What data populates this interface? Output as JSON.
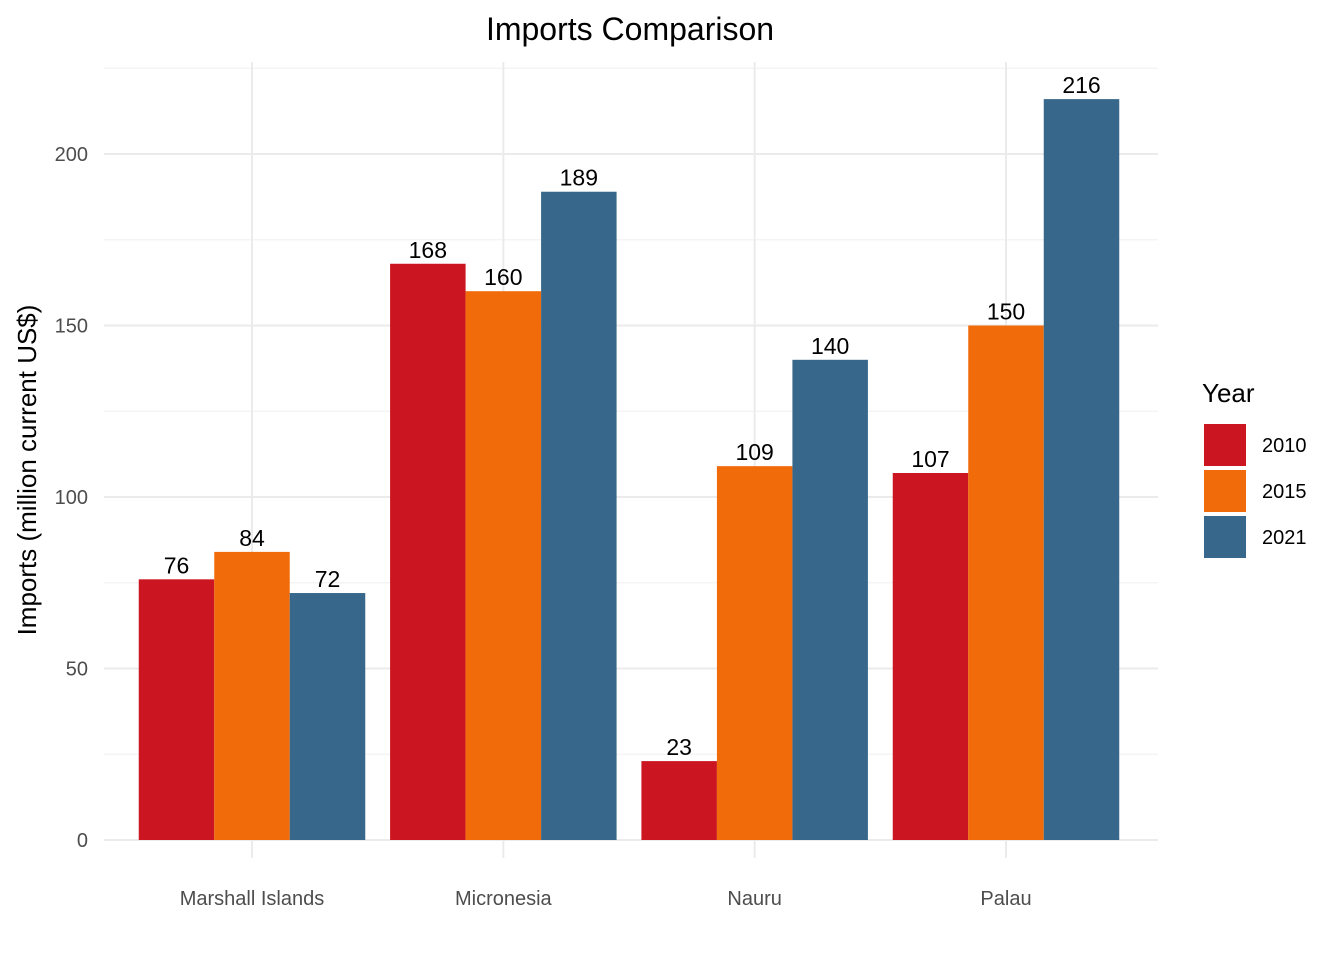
{
  "chart_data": {
    "type": "bar",
    "title": "Imports Comparison",
    "xlabel": "",
    "ylabel": "Imports (million current US$)",
    "categories": [
      "Marshall Islands",
      "Micronesia",
      "Nauru",
      "Palau"
    ],
    "series": [
      {
        "name": "2010",
        "color": "#cb1520",
        "values": [
          76,
          168,
          23,
          107
        ]
      },
      {
        "name": "2015",
        "color": "#f26b0a",
        "values": [
          84,
          160,
          109,
          150
        ]
      },
      {
        "name": "2021",
        "color": "#37678a",
        "values": [
          72,
          189,
          140,
          216
        ]
      }
    ],
    "ylim": [
      0,
      220
    ],
    "yticks": [
      0,
      50,
      100,
      150,
      200
    ],
    "grid": true,
    "legend": {
      "title": "Year",
      "position": "right"
    }
  }
}
